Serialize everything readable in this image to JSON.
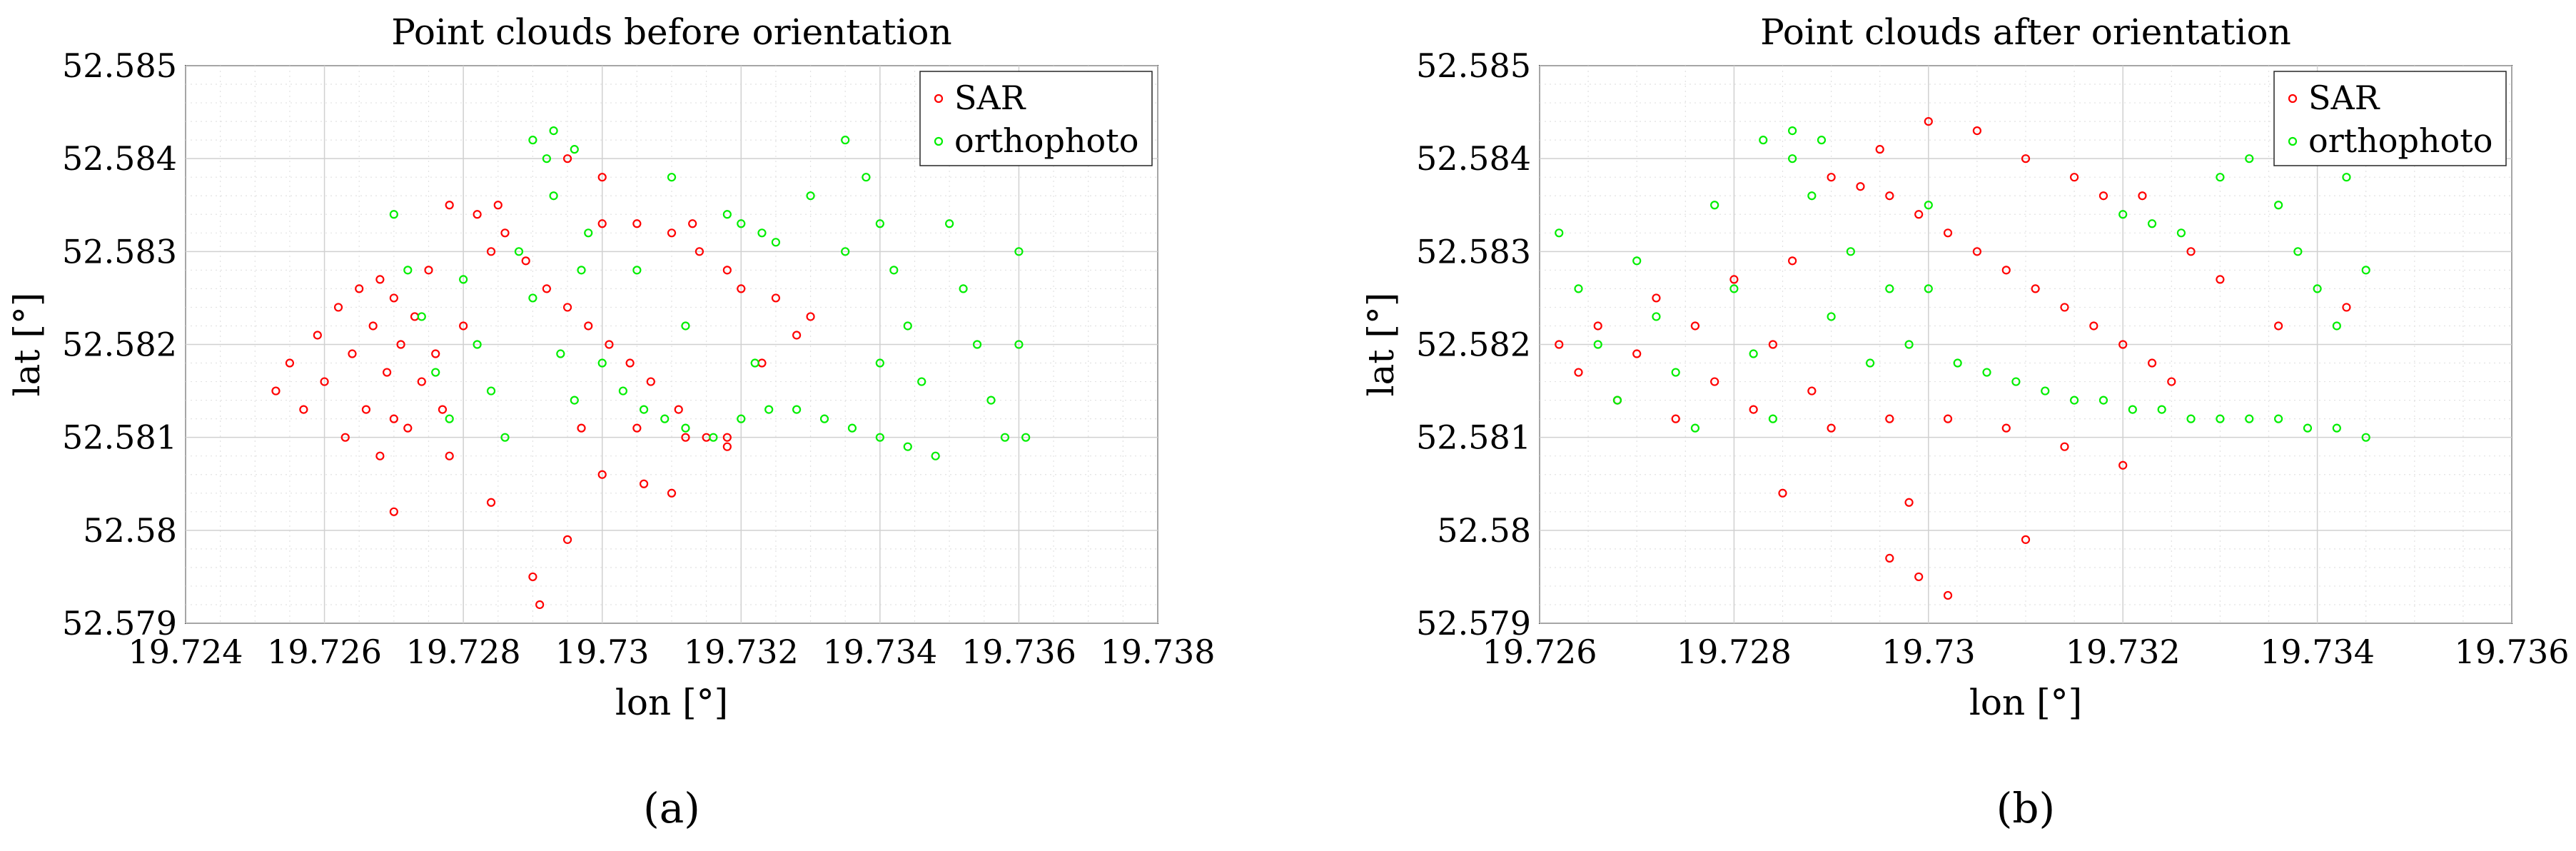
{
  "chart_data": [
    {
      "type": "scatter",
      "title": "Point clouds before orientation",
      "xlabel": "lon [°]",
      "ylabel": "lat [°]",
      "xlim": [
        19.724,
        19.738
      ],
      "ylim": [
        52.579,
        52.585
      ],
      "xticks": [
        19.724,
        19.726,
        19.728,
        19.73,
        19.732,
        19.734,
        19.736,
        19.738
      ],
      "xtick_labels": [
        "19.724",
        "19.726",
        "19.728",
        "19.73",
        "19.732",
        "19.734",
        "19.736",
        "19.738"
      ],
      "yticks": [
        52.579,
        52.58,
        52.581,
        52.582,
        52.583,
        52.584,
        52.585
      ],
      "ytick_labels": [
        "52.579",
        "52.58",
        "52.581",
        "52.582",
        "52.583",
        "52.584",
        "52.585"
      ],
      "grid": true,
      "legend_position": "top-right",
      "subfigure_label": "(a)",
      "series": [
        {
          "name": "SAR",
          "color": "#ff0000",
          "points": [
            [
              19.7253,
              52.5815
            ],
            [
              19.7255,
              52.5818
            ],
            [
              19.7257,
              52.5813
            ],
            [
              19.7259,
              52.5821
            ],
            [
              19.726,
              52.5816
            ],
            [
              19.7262,
              52.5824
            ],
            [
              19.7263,
              52.581
            ],
            [
              19.7264,
              52.5819
            ],
            [
              19.7265,
              52.5826
            ],
            [
              19.7266,
              52.5813
            ],
            [
              19.7267,
              52.5822
            ],
            [
              19.7268,
              52.5808
            ],
            [
              19.7268,
              52.5827
            ],
            [
              19.7269,
              52.5817
            ],
            [
              19.727,
              52.5812
            ],
            [
              19.727,
              52.5825
            ],
            [
              19.7271,
              52.582
            ],
            [
              19.7272,
              52.5811
            ],
            [
              19.7273,
              52.5823
            ],
            [
              19.7274,
              52.5816
            ],
            [
              19.7275,
              52.5828
            ],
            [
              19.7276,
              52.5819
            ],
            [
              19.7277,
              52.5813
            ],
            [
              19.7278,
              52.5835
            ],
            [
              19.728,
              52.5822
            ],
            [
              19.7282,
              52.5834
            ],
            [
              19.7284,
              52.583
            ],
            [
              19.7286,
              52.5832
            ],
            [
              19.7289,
              52.5829
            ],
            [
              19.7292,
              52.5826
            ],
            [
              19.7295,
              52.5824
            ],
            [
              19.7298,
              52.5822
            ],
            [
              19.7301,
              52.582
            ],
            [
              19.7304,
              52.5818
            ],
            [
              19.7307,
              52.5816
            ],
            [
              19.7311,
              52.5813
            ],
            [
              19.7315,
              52.581
            ],
            [
              19.7318,
              52.5809
            ],
            [
              19.7285,
              52.5835
            ],
            [
              19.73,
              52.5833
            ],
            [
              19.7305,
              52.5833
            ],
            [
              19.731,
              52.5832
            ],
            [
              19.7313,
              52.5833
            ],
            [
              19.732,
              52.5826
            ],
            [
              19.7325,
              52.5825
            ],
            [
              19.733,
              52.5823
            ],
            [
              19.7328,
              52.5821
            ],
            [
              19.7297,
              52.5811
            ],
            [
              19.7305,
              52.5811
            ],
            [
              19.7312,
              52.581
            ],
            [
              19.7318,
              52.581
            ],
            [
              19.73,
              52.5806
            ],
            [
              19.7306,
              52.5805
            ],
            [
              19.731,
              52.5804
            ],
            [
              19.7295,
              52.5799
            ],
            [
              19.729,
              52.5795
            ],
            [
              19.7291,
              52.5792
            ],
            [
              19.727,
              52.5802
            ],
            [
              19.7278,
              52.5808
            ],
            [
              19.7284,
              52.5803
            ],
            [
              19.7295,
              52.584
            ],
            [
              19.73,
              52.5838
            ],
            [
              19.7323,
              52.5818
            ],
            [
              19.7318,
              52.5828
            ],
            [
              19.7314,
              52.583
            ]
          ]
        },
        {
          "name": "orthophoto",
          "color": "#00ee00",
          "points": [
            [
              19.727,
              52.5834
            ],
            [
              19.7272,
              52.5828
            ],
            [
              19.7274,
              52.5823
            ],
            [
              19.7276,
              52.5817
            ],
            [
              19.7278,
              52.5812
            ],
            [
              19.728,
              52.5827
            ],
            [
              19.7282,
              52.582
            ],
            [
              19.7284,
              52.5815
            ],
            [
              19.7286,
              52.581
            ],
            [
              19.7288,
              52.583
            ],
            [
              19.729,
              52.5825
            ],
            [
              19.7292,
              52.584
            ],
            [
              19.7293,
              52.5836
            ],
            [
              19.7294,
              52.5819
            ],
            [
              19.7296,
              52.5814
            ],
            [
              19.7298,
              52.5832
            ],
            [
              19.73,
              52.5818
            ],
            [
              19.7303,
              52.5815
            ],
            [
              19.7306,
              52.5813
            ],
            [
              19.7309,
              52.5812
            ],
            [
              19.7312,
              52.5811
            ],
            [
              19.7316,
              52.581
            ],
            [
              19.732,
              52.5812
            ],
            [
              19.7324,
              52.5813
            ],
            [
              19.7328,
              52.5813
            ],
            [
              19.7332,
              52.5812
            ],
            [
              19.7336,
              52.5811
            ],
            [
              19.734,
              52.581
            ],
            [
              19.7344,
              52.5809
            ],
            [
              19.7348,
              52.5808
            ],
            [
              19.729,
              52.5842
            ],
            [
              19.7293,
              52.5843
            ],
            [
              19.7296,
              52.5841
            ],
            [
              19.7318,
              52.5834
            ],
            [
              19.732,
              52.5833
            ],
            [
              19.7323,
              52.5832
            ],
            [
              19.7325,
              52.5831
            ],
            [
              19.7335,
              52.5842
            ],
            [
              19.7338,
              52.5838
            ],
            [
              19.734,
              52.5833
            ],
            [
              19.7342,
              52.5828
            ],
            [
              19.7344,
              52.5822
            ],
            [
              19.7346,
              52.5816
            ],
            [
              19.7348,
              52.584
            ],
            [
              19.735,
              52.5833
            ],
            [
              19.7352,
              52.5826
            ],
            [
              19.7354,
              52.582
            ],
            [
              19.7356,
              52.5814
            ],
            [
              19.7358,
              52.581
            ],
            [
              19.736,
              52.583
            ],
            [
              19.736,
              52.582
            ],
            [
              19.7361,
              52.581
            ],
            [
              19.733,
              52.5836
            ],
            [
              19.7335,
              52.583
            ],
            [
              19.734,
              52.5818
            ],
            [
              19.7322,
              52.5818
            ],
            [
              19.7312,
              52.5822
            ],
            [
              19.7305,
              52.5828
            ],
            [
              19.7297,
              52.5828
            ],
            [
              19.731,
              52.5838
            ]
          ]
        }
      ]
    },
    {
      "type": "scatter",
      "title": "Point clouds after orientation",
      "xlabel": "lon [°]",
      "ylabel": "lat [°]",
      "xlim": [
        19.726,
        19.736
      ],
      "ylim": [
        52.579,
        52.585
      ],
      "xticks": [
        19.726,
        19.728,
        19.73,
        19.732,
        19.734,
        19.736
      ],
      "xtick_labels": [
        "19.726",
        "19.728",
        "19.73",
        "19.732",
        "19.734",
        "19.736"
      ],
      "yticks": [
        52.579,
        52.58,
        52.581,
        52.582,
        52.583,
        52.584,
        52.585
      ],
      "ytick_labels": [
        "52.579",
        "52.58",
        "52.581",
        "52.582",
        "52.583",
        "52.584",
        "52.585"
      ],
      "grid": true,
      "legend_position": "top-right",
      "subfigure_label": "(b)",
      "series": [
        {
          "name": "SAR",
          "color": "#ff0000",
          "points": [
            [
              19.7262,
              52.582
            ],
            [
              19.7264,
              52.5817
            ],
            [
              19.7266,
              52.5822
            ],
            [
              19.7268,
              52.5814
            ],
            [
              19.727,
              52.5819
            ],
            [
              19.7272,
              52.5825
            ],
            [
              19.7274,
              52.5812
            ],
            [
              19.7276,
              52.5822
            ],
            [
              19.7278,
              52.5816
            ],
            [
              19.728,
              52.5827
            ],
            [
              19.7282,
              52.5813
            ],
            [
              19.7284,
              52.582
            ],
            [
              19.7286,
              52.5829
            ],
            [
              19.7288,
              52.5815
            ],
            [
              19.729,
              52.5838
            ],
            [
              19.7293,
              52.5837
            ],
            [
              19.7296,
              52.5836
            ],
            [
              19.7299,
              52.5834
            ],
            [
              19.7302,
              52.5832
            ],
            [
              19.7305,
              52.583
            ],
            [
              19.7308,
              52.5828
            ],
            [
              19.7311,
              52.5826
            ],
            [
              19.7314,
              52.5824
            ],
            [
              19.7317,
              52.5822
            ],
            [
              19.732,
              52.582
            ],
            [
              19.7323,
              52.5818
            ],
            [
              19.7325,
              52.5816
            ],
            [
              19.73,
              52.5844
            ],
            [
              19.7305,
              52.5843
            ],
            [
              19.7295,
              52.5841
            ],
            [
              19.731,
              52.584
            ],
            [
              19.7315,
              52.5838
            ],
            [
              19.7318,
              52.5836
            ],
            [
              19.7322,
              52.5836
            ],
            [
              19.7327,
              52.583
            ],
            [
              19.733,
              52.5827
            ],
            [
              19.7336,
              52.5822
            ],
            [
              19.7343,
              52.5824
            ],
            [
              19.729,
              52.5811
            ],
            [
              19.7296,
              52.5812
            ],
            [
              19.7302,
              52.5812
            ],
            [
              19.7308,
              52.5811
            ],
            [
              19.7314,
              52.5809
            ],
            [
              19.732,
              52.5807
            ],
            [
              19.7298,
              52.5803
            ],
            [
              19.7296,
              52.5797
            ],
            [
              19.7299,
              52.5795
            ],
            [
              19.7302,
              52.5793
            ],
            [
              19.7285,
              52.5804
            ],
            [
              19.731,
              52.5799
            ]
          ]
        },
        {
          "name": "orthophoto",
          "color": "#00ee00",
          "points": [
            [
              19.7262,
              52.5832
            ],
            [
              19.7264,
              52.5826
            ],
            [
              19.7266,
              52.582
            ],
            [
              19.7268,
              52.5814
            ],
            [
              19.727,
              52.5829
            ],
            [
              19.7272,
              52.5823
            ],
            [
              19.7274,
              52.5817
            ],
            [
              19.7276,
              52.5811
            ],
            [
              19.7278,
              52.5835
            ],
            [
              19.728,
              52.5826
            ],
            [
              19.7282,
              52.5819
            ],
            [
              19.7284,
              52.5812
            ],
            [
              19.7286,
              52.584
            ],
            [
              19.7288,
              52.5836
            ],
            [
              19.729,
              52.5823
            ],
            [
              19.7292,
              52.583
            ],
            [
              19.7294,
              52.5818
            ],
            [
              19.7296,
              52.5826
            ],
            [
              19.7298,
              52.582
            ],
            [
              19.73,
              52.5835
            ],
            [
              19.7303,
              52.5818
            ],
            [
              19.7306,
              52.5817
            ],
            [
              19.7309,
              52.5816
            ],
            [
              19.7312,
              52.5815
            ],
            [
              19.7315,
              52.5814
            ],
            [
              19.7318,
              52.5814
            ],
            [
              19.7321,
              52.5813
            ],
            [
              19.7324,
              52.5813
            ],
            [
              19.7327,
              52.5812
            ],
            [
              19.733,
              52.5812
            ],
            [
              19.7333,
              52.5812
            ],
            [
              19.7336,
              52.5812
            ],
            [
              19.7339,
              52.5811
            ],
            [
              19.7342,
              52.5811
            ],
            [
              19.7345,
              52.581
            ],
            [
              19.7283,
              52.5842
            ],
            [
              19.7286,
              52.5843
            ],
            [
              19.7289,
              52.5842
            ],
            [
              19.732,
              52.5834
            ],
            [
              19.7323,
              52.5833
            ],
            [
              19.7326,
              52.5832
            ],
            [
              19.733,
              52.5838
            ],
            [
              19.7333,
              52.584
            ],
            [
              19.7336,
              52.5835
            ],
            [
              19.7338,
              52.583
            ],
            [
              19.734,
              52.5826
            ],
            [
              19.7342,
              52.5822
            ],
            [
              19.7343,
              52.5838
            ],
            [
              19.7345,
              52.5828
            ],
            [
              19.73,
              52.5826
            ]
          ]
        }
      ]
    }
  ]
}
